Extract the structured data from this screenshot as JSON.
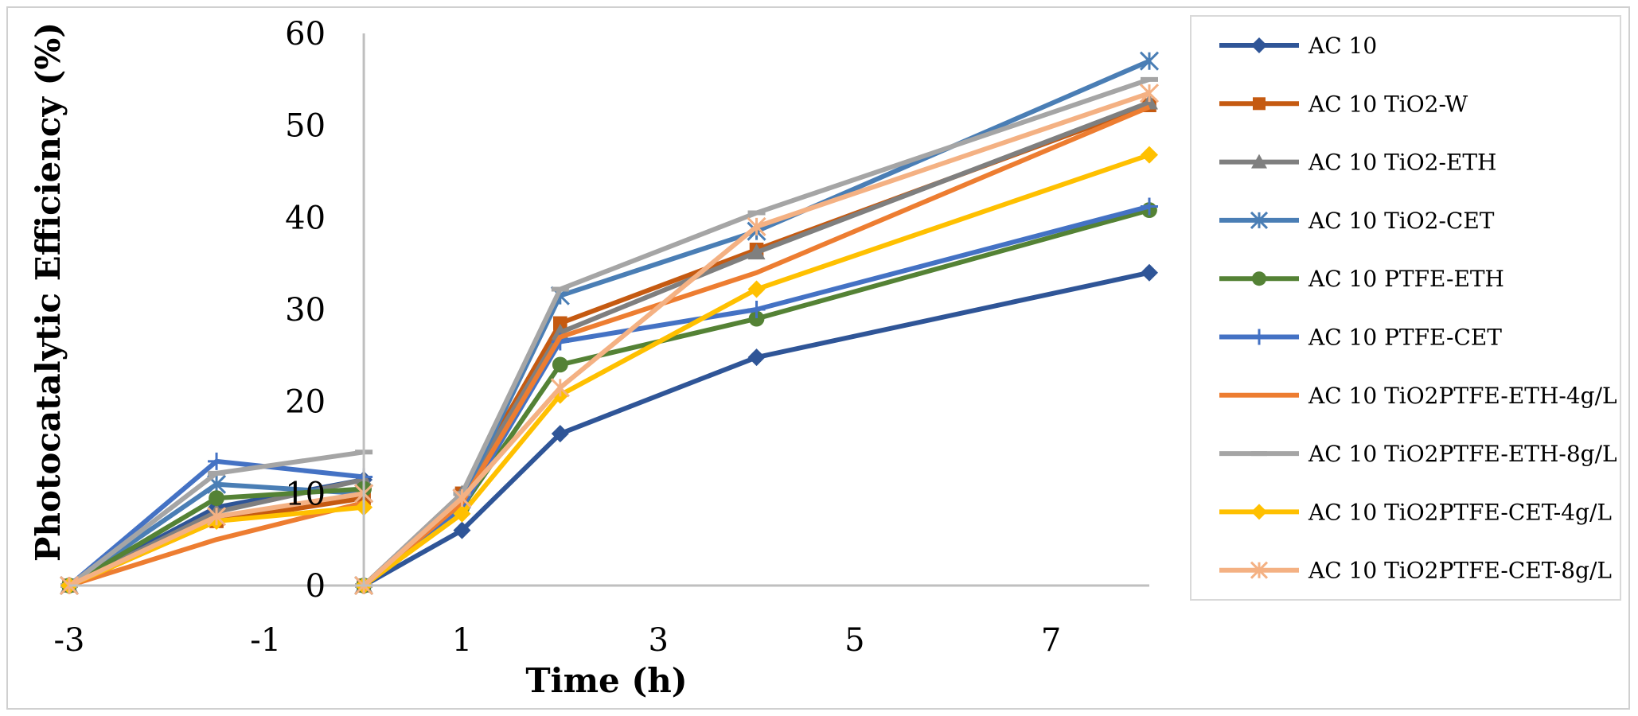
{
  "chart_data": {
    "type": "line",
    "title": "",
    "xlabel": "Time (h)",
    "ylabel": "Photocatalytic Efficiency (%)",
    "xlim": [
      -3,
      8
    ],
    "ylim": [
      0,
      60
    ],
    "x_ticks": [
      -3,
      -1,
      1,
      3,
      5,
      7
    ],
    "y_ticks": [
      0,
      10,
      20,
      30,
      40,
      50,
      60
    ],
    "grid": false,
    "legend_position": "right",
    "series": [
      {
        "name": "AC 10",
        "color": "#2f5597",
        "marker": "diamond",
        "x": [
          -3,
          -1.5,
          0,
          0,
          1,
          2,
          4,
          8
        ],
        "y": [
          0,
          8.5,
          11.5,
          0,
          6,
          16.5,
          24.8,
          34
        ]
      },
      {
        "name": "AC 10 TiO2-W",
        "color": "#c55a11",
        "marker": "square",
        "x": [
          -3,
          -1.5,
          0,
          0,
          1,
          2,
          4,
          8
        ],
        "y": [
          0,
          7,
          9.5,
          0,
          10,
          28.5,
          36.5,
          52.2
        ]
      },
      {
        "name": "AC 10 TiO2-ETH",
        "color": "#7f7f7f",
        "marker": "triangle",
        "x": [
          -3,
          -1.5,
          0,
          0,
          1,
          2,
          4,
          8
        ],
        "y": [
          0,
          8,
          11.5,
          0,
          10,
          27.5,
          36.2,
          52.5
        ]
      },
      {
        "name": "AC 10 TiO2-CET",
        "color": "#4a7eb5",
        "marker": "star",
        "x": [
          -3,
          -1.5,
          0,
          0,
          1,
          2,
          4,
          8
        ],
        "y": [
          0,
          11,
          10,
          0,
          9.5,
          31.5,
          38.5,
          57
        ]
      },
      {
        "name": "AC 10 PTFE-ETH",
        "color": "#548235",
        "marker": "circle",
        "x": [
          -3,
          -1.5,
          0,
          0,
          1,
          2,
          4,
          8
        ],
        "y": [
          0,
          9.5,
          10.5,
          0,
          8.5,
          24,
          29,
          40.8
        ]
      },
      {
        "name": "AC 10 PTFE-CET",
        "color": "#4472c4",
        "marker": "plus",
        "x": [
          -3,
          -1.5,
          0,
          0,
          1,
          2,
          4,
          8
        ],
        "y": [
          0,
          13.5,
          11.8,
          0,
          8.5,
          26.5,
          30,
          41.2
        ]
      },
      {
        "name": "AC 10 TiO2PTFE-ETH-4g/L",
        "color": "#ed7d31",
        "marker": "none",
        "x": [
          -3,
          -1.5,
          0,
          0,
          1,
          2,
          4,
          8
        ],
        "y": [
          0,
          5,
          9,
          0,
          9,
          27,
          34,
          52
        ]
      },
      {
        "name": "AC 10 TiO2PTFE-ETH-8g/L",
        "color": "#a5a5a5",
        "marker": "dash",
        "x": [
          -3,
          -1.5,
          0,
          0,
          1,
          2,
          4,
          8
        ],
        "y": [
          0,
          12.2,
          14.5,
          0,
          10,
          32.2,
          40.5,
          55
        ]
      },
      {
        "name": "AC 10 TiO2PTFE-CET-4g/L",
        "color": "#ffc000",
        "marker": "diamond",
        "x": [
          -3,
          -1.5,
          0,
          0,
          1,
          2,
          4,
          8
        ],
        "y": [
          0,
          7,
          8.5,
          0,
          7.8,
          20.7,
          32.2,
          46.8
        ]
      },
      {
        "name": "AC 10 TiO2PTFE-CET-8g/L",
        "color": "#f4b183",
        "marker": "star",
        "x": [
          -3,
          -1.5,
          0,
          0,
          1,
          2,
          4,
          8
        ],
        "y": [
          0,
          7.5,
          10,
          0,
          9.5,
          21.5,
          39,
          53.5
        ]
      }
    ]
  }
}
